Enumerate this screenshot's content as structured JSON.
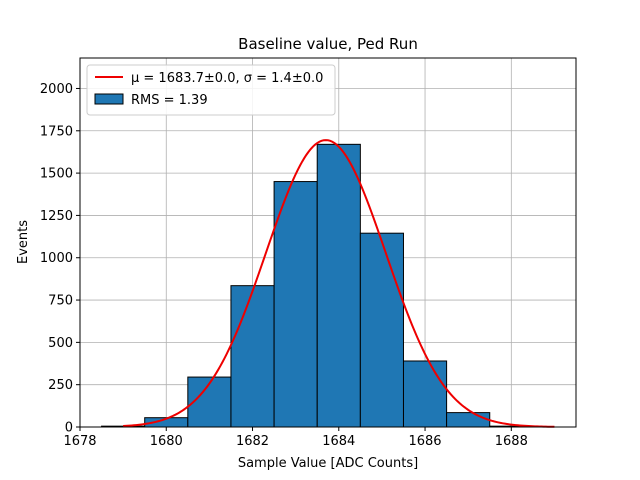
{
  "chart_data": {
    "type": "bar",
    "title": "Baseline value, Ped Run",
    "xlabel": "Sample Value [ADC Counts]",
    "ylabel": "Events",
    "xlim": [
      1678,
      1689.5
    ],
    "ylim": [
      0,
      2180
    ],
    "grid": true,
    "legend_position": "top-left",
    "xticks": [
      1678,
      1680,
      1682,
      1684,
      1686,
      1688
    ],
    "yticks": [
      0,
      250,
      500,
      750,
      1000,
      1250,
      1500,
      1750,
      2000
    ],
    "histogram": {
      "name": "RMS = 1.39",
      "color": "#1f77b4",
      "edgecolor": "#000000",
      "bin_edges": [
        1678.5,
        1679.5,
        1680.5,
        1681.5,
        1682.5,
        1683.5,
        1684.5,
        1685.5,
        1686.5,
        1687.5,
        1688.5
      ],
      "counts": [
        5,
        55,
        295,
        835,
        1450,
        1670,
        1145,
        390,
        85,
        5
      ]
    },
    "fit": {
      "name": "μ = 1683.7±0.0, σ = 1.4±0.0",
      "color": "#ee0000",
      "mu": 1683.7,
      "sigma": 1.39,
      "amplitude": 1695,
      "x_range": [
        1679,
        1689
      ]
    }
  }
}
